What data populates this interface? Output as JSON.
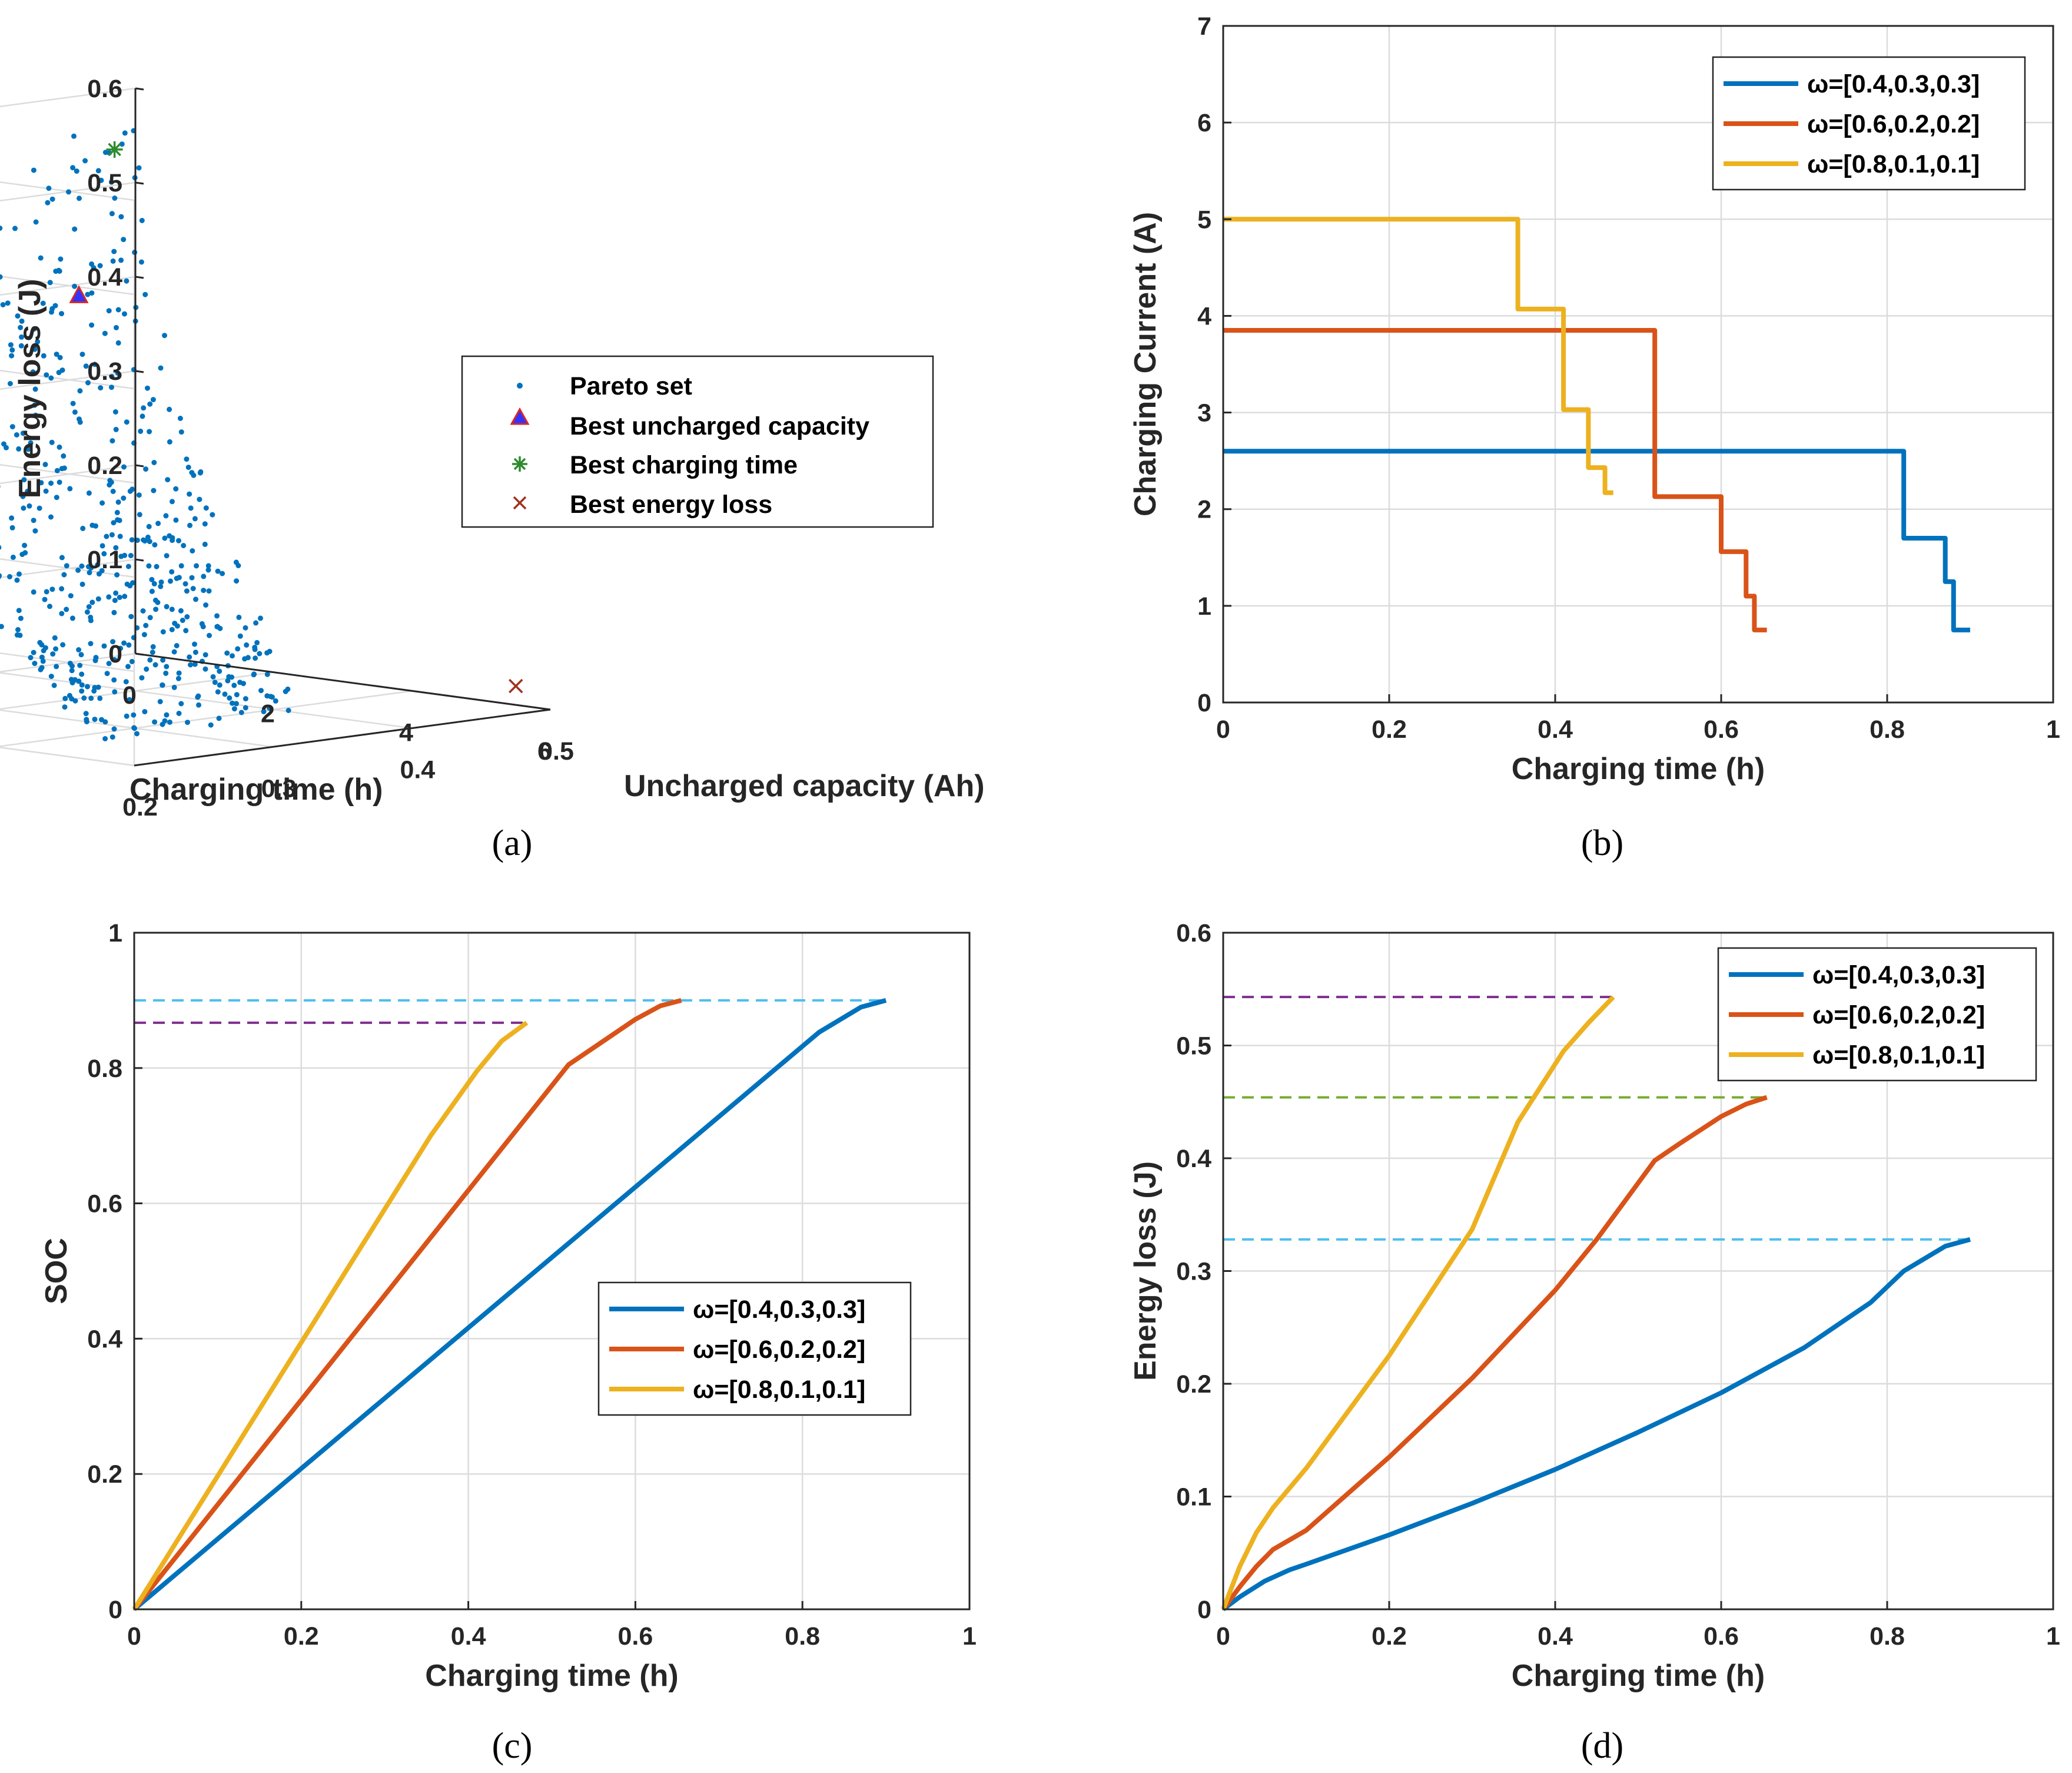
{
  "colors": {
    "blue": "#0072BD",
    "orange": "#D95319",
    "yellow": "#EDB120",
    "purple": "#7E2F8E",
    "green": "#77AC30",
    "cyan": "#4DBEEE",
    "pareto": "#0072BD",
    "triangle_fill": "#3333ff",
    "triangle_edge": "#d62728",
    "star": "#2e8b2e",
    "cross": "#a0321e"
  },
  "captions": {
    "a": "(a)",
    "b": "(b)",
    "c": "(c)",
    "d": "(d)"
  },
  "chart_data": [
    {
      "id": "a",
      "type": "scatter",
      "projection": "3d",
      "title": "",
      "xlabel": "Charging time (h)",
      "ylabel": "Uncharged  capacity (Ah)",
      "zlabel": "Energy loss (J)",
      "xticks": [
        "0",
        "2",
        "4",
        "6"
      ],
      "yticks": [
        "0.2",
        "0.3",
        "0.4",
        "0.5"
      ],
      "zticks": [
        "0",
        "0.1",
        "0.2",
        "0.3",
        "0.4",
        "0.5",
        "0.6"
      ],
      "xlim": [
        0,
        6
      ],
      "ylim": [
        0.2,
        0.5
      ],
      "zlim": [
        0,
        0.6
      ],
      "legend": [
        {
          "label": "Pareto set",
          "marker": "dot"
        },
        {
          "label": "Best uncharged capacity",
          "marker": "triangle"
        },
        {
          "label": "Best charging time",
          "marker": "star"
        },
        {
          "label": "Best energy loss",
          "marker": "x"
        }
      ],
      "best_points": [
        {
          "name": "Best uncharged capacity",
          "x": 5.2,
          "y": 0.2,
          "z": 0.49
        },
        {
          "name": "Best charging time",
          "x": 0.1,
          "y": 0.48,
          "z": 0.54
        },
        {
          "name": "Best energy loss",
          "x": 5.5,
          "y": 0.5,
          "z": 0.02
        }
      ],
      "pareto_front_note": "dense cloud of ~700 Pareto-optimal points spanning charging time 0.1–5.5 h, uncharged capacity 0.2–0.5 Ah, energy loss 0.02–0.56 J"
    },
    {
      "id": "b",
      "type": "line",
      "xlabel": "Charging time (h)",
      "ylabel": "Charging Current (A)",
      "xlim": [
        0,
        1
      ],
      "ylim": [
        0,
        7
      ],
      "xticks": [
        "0",
        "0.2",
        "0.4",
        "0.6",
        "0.8",
        "1"
      ],
      "yticks": [
        "0",
        "1",
        "2",
        "3",
        "4",
        "5",
        "6",
        "7"
      ],
      "legend_position": "top-right",
      "series": [
        {
          "name": "ω=[0.4,0.3,0.3]",
          "color": "#0072BD",
          "x": [
            0,
            0.82,
            0.82,
            0.87,
            0.87,
            0.88,
            0.88,
            0.9
          ],
          "y": [
            2.6,
            2.6,
            1.7,
            1.7,
            1.25,
            1.25,
            0.75,
            0.75
          ]
        },
        {
          "name": "ω=[0.6,0.2,0.2]",
          "color": "#D95319",
          "x": [
            0,
            0.52,
            0.52,
            0.6,
            0.6,
            0.63,
            0.63,
            0.64,
            0.64,
            0.655
          ],
          "y": [
            3.85,
            3.85,
            2.13,
            2.13,
            1.56,
            1.56,
            1.1,
            1.1,
            0.75,
            0.75
          ]
        },
        {
          "name": "ω=[0.8,0.1,0.1]",
          "color": "#EDB120",
          "x": [
            0,
            0.355,
            0.355,
            0.41,
            0.41,
            0.44,
            0.44,
            0.46,
            0.46,
            0.47
          ],
          "y": [
            5.0,
            5.0,
            4.07,
            4.07,
            3.03,
            3.03,
            2.43,
            2.43,
            2.17,
            2.17
          ]
        }
      ]
    },
    {
      "id": "c",
      "type": "line",
      "xlabel": "Charging time (h)",
      "ylabel": "SOC",
      "xlim": [
        0,
        1
      ],
      "ylim": [
        0,
        1
      ],
      "xticks": [
        "0",
        "0.2",
        "0.4",
        "0.6",
        "0.8",
        "1"
      ],
      "yticks": [
        "0",
        "0.2",
        "0.4",
        "0.6",
        "0.8",
        "1"
      ],
      "legend_position": "center-right",
      "series": [
        {
          "name": "ω=[0.4,0.3,0.3]",
          "color": "#0072BD",
          "x": [
            0,
            0.82,
            0.87,
            0.9
          ],
          "y": [
            0,
            0.853,
            0.89,
            0.9
          ]
        },
        {
          "name": "ω=[0.6,0.2,0.2]",
          "color": "#D95319",
          "x": [
            0,
            0.52,
            0.6,
            0.63,
            0.655
          ],
          "y": [
            0,
            0.805,
            0.872,
            0.892,
            0.9
          ]
        },
        {
          "name": "ω=[0.8,0.1,0.1]",
          "color": "#EDB120",
          "x": [
            0,
            0.355,
            0.41,
            0.44,
            0.47
          ],
          "y": [
            0,
            0.7,
            0.795,
            0.84,
            0.867
          ]
        }
      ],
      "reference_lines": [
        {
          "y": 0.9,
          "x_end": 0.9,
          "color": "#4DBEEE",
          "style": "dashed"
        },
        {
          "y": 0.867,
          "x_end": 0.47,
          "color": "#7E2F8E",
          "style": "dashed"
        }
      ]
    },
    {
      "id": "d",
      "type": "line",
      "xlabel": "Charging time (h)",
      "ylabel": "Energy loss (J)",
      "xlim": [
        0,
        1
      ],
      "ylim": [
        0,
        0.6
      ],
      "xticks": [
        "0",
        "0.2",
        "0.4",
        "0.6",
        "0.8",
        "1"
      ],
      "yticks": [
        "0",
        "0.1",
        "0.2",
        "0.3",
        "0.4",
        "0.5",
        "0.6"
      ],
      "legend_position": "top-right",
      "series": [
        {
          "name": "ω=[0.4,0.3,0.3]",
          "color": "#0072BD",
          "x": [
            0,
            0.02,
            0.05,
            0.08,
            0.1,
            0.2,
            0.3,
            0.4,
            0.5,
            0.6,
            0.7,
            0.78,
            0.82,
            0.87,
            0.9
          ],
          "y": [
            0,
            0.011,
            0.025,
            0.035,
            0.04,
            0.066,
            0.094,
            0.124,
            0.157,
            0.192,
            0.232,
            0.272,
            0.3,
            0.322,
            0.328
          ]
        },
        {
          "name": "ω=[0.6,0.2,0.2]",
          "color": "#D95319",
          "x": [
            0,
            0.02,
            0.04,
            0.06,
            0.1,
            0.2,
            0.3,
            0.4,
            0.45,
            0.52,
            0.55,
            0.6,
            0.63,
            0.655
          ],
          "y": [
            0,
            0.02,
            0.038,
            0.053,
            0.07,
            0.135,
            0.205,
            0.283,
            0.328,
            0.398,
            0.413,
            0.437,
            0.448,
            0.454
          ]
        },
        {
          "name": "ω=[0.8,0.1,0.1]",
          "color": "#EDB120",
          "x": [
            0,
            0.02,
            0.04,
            0.06,
            0.1,
            0.2,
            0.3,
            0.355,
            0.41,
            0.44,
            0.47
          ],
          "y": [
            0,
            0.038,
            0.068,
            0.09,
            0.125,
            0.225,
            0.337,
            0.432,
            0.495,
            0.52,
            0.543
          ]
        }
      ],
      "reference_lines": [
        {
          "y": 0.543,
          "x_end": 0.47,
          "color": "#7E2F8E",
          "style": "dashed"
        },
        {
          "y": 0.454,
          "x_end": 0.655,
          "color": "#77AC30",
          "style": "dashed"
        },
        {
          "y": 0.328,
          "x_end": 0.9,
          "color": "#4DBEEE",
          "style": "dashed"
        }
      ]
    }
  ]
}
